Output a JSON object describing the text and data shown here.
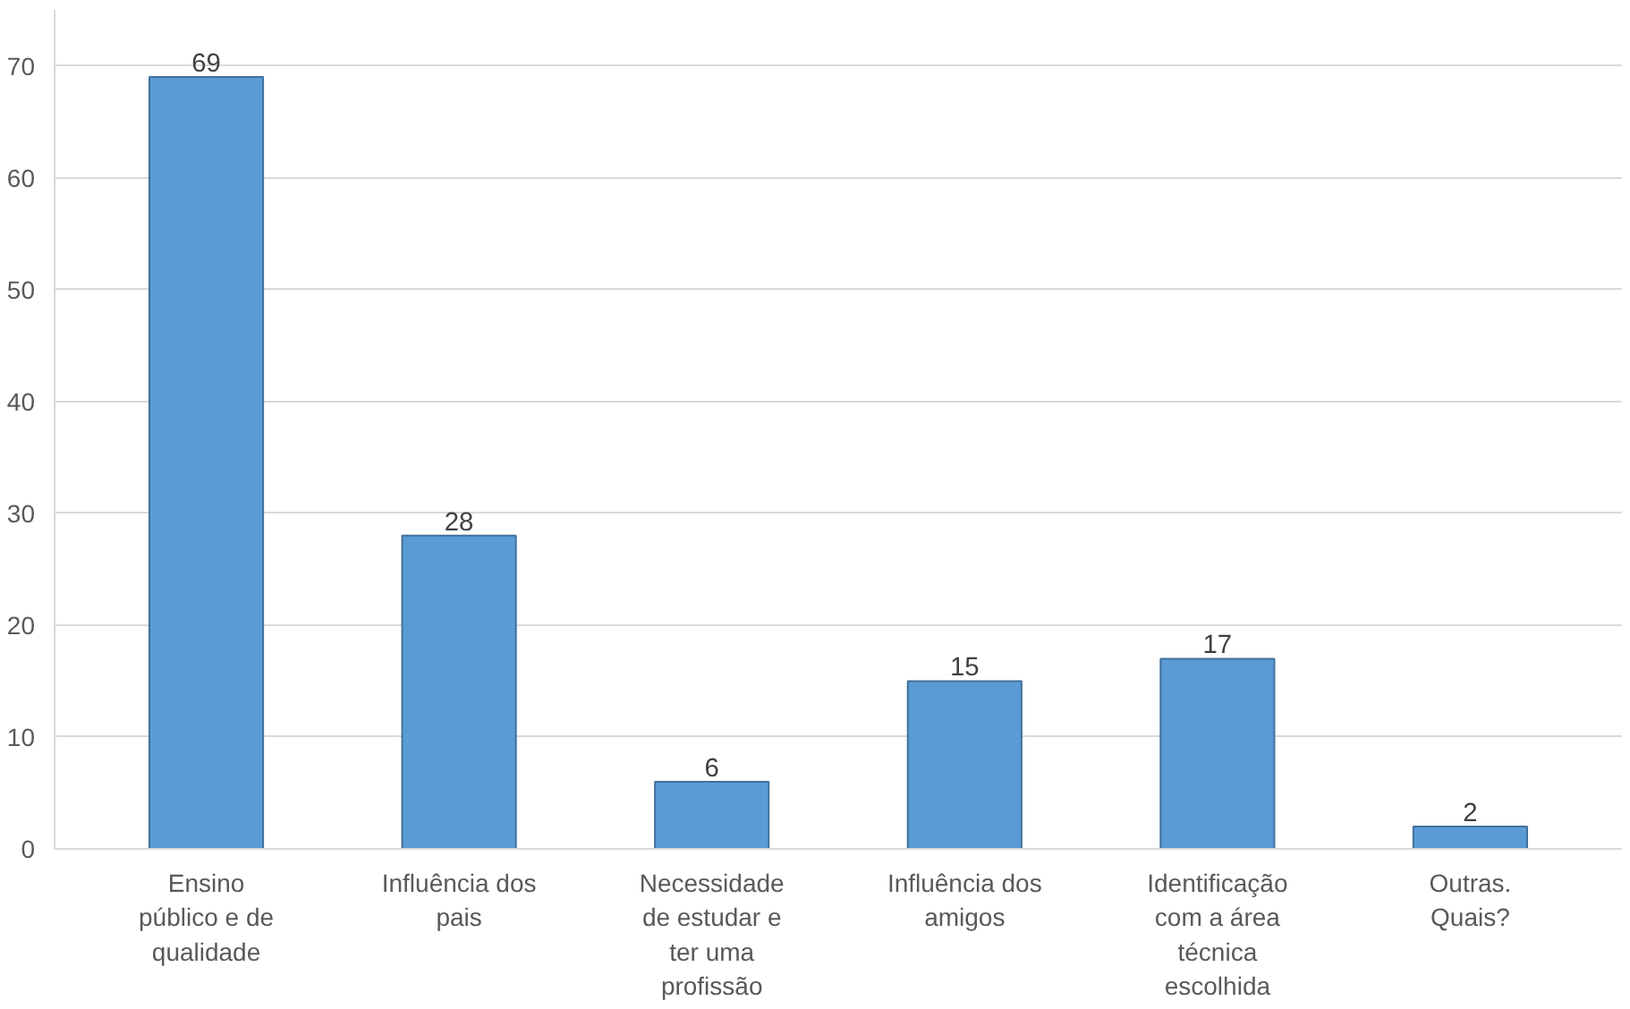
{
  "chart_data": {
    "type": "bar",
    "categories": [
      "Ensino\npúblico e de\nqualidade",
      "Influência dos\npais",
      "Necessidade\nde estudar e\nter uma\nprofissão",
      "Influência dos\namigos",
      "Identificação\ncom a área\ntécnica\nescolhida",
      "Outras.\nQuais?"
    ],
    "values": [
      69,
      28,
      6,
      15,
      17,
      2
    ],
    "color": "#5b9bd5",
    "ylim": [
      0,
      75
    ],
    "yticks": [
      0,
      10,
      20,
      30,
      40,
      50,
      60,
      70
    ],
    "grid": "y",
    "data_labels": true
  }
}
